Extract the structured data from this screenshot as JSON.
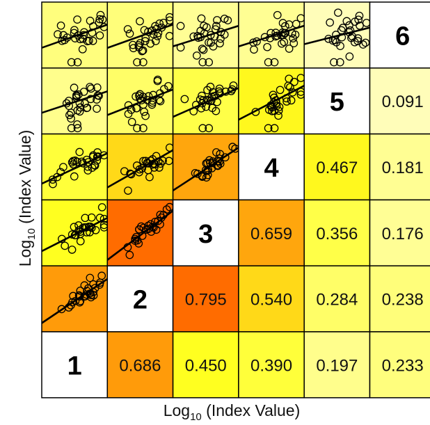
{
  "chart_data": {
    "type": "heatmap",
    "variables": [
      "1",
      "2",
      "3",
      "4",
      "5",
      "6"
    ],
    "xlabel": {
      "base": "Log",
      "sub": "10",
      "rest": " (Index Value)"
    },
    "ylabel": {
      "base": "Log",
      "sub": "10",
      "rest": " (Index Value)"
    },
    "correlations": [
      {
        "pair": [
          "1",
          "2"
        ],
        "value": "0.686"
      },
      {
        "pair": [
          "1",
          "3"
        ],
        "value": "0.450"
      },
      {
        "pair": [
          "1",
          "4"
        ],
        "value": "0.390"
      },
      {
        "pair": [
          "1",
          "5"
        ],
        "value": "0.197"
      },
      {
        "pair": [
          "1",
          "6"
        ],
        "value": "0.233"
      },
      {
        "pair": [
          "2",
          "3"
        ],
        "value": "0.795"
      },
      {
        "pair": [
          "2",
          "4"
        ],
        "value": "0.540"
      },
      {
        "pair": [
          "2",
          "5"
        ],
        "value": "0.284"
      },
      {
        "pair": [
          "2",
          "6"
        ],
        "value": "0.238"
      },
      {
        "pair": [
          "3",
          "4"
        ],
        "value": "0.659"
      },
      {
        "pair": [
          "3",
          "5"
        ],
        "value": "0.356"
      },
      {
        "pair": [
          "3",
          "6"
        ],
        "value": "0.176"
      },
      {
        "pair": [
          "4",
          "5"
        ],
        "value": "0.467"
      },
      {
        "pair": [
          "4",
          "6"
        ],
        "value": "0.181"
      },
      {
        "pair": [
          "5",
          "6"
        ],
        "value": "0.091"
      }
    ],
    "color_scale": {
      "low": "#fffde0",
      "mid": "#ffff20",
      "high": "#ff6a00"
    },
    "marker": "open-circle",
    "fit_line": true
  }
}
